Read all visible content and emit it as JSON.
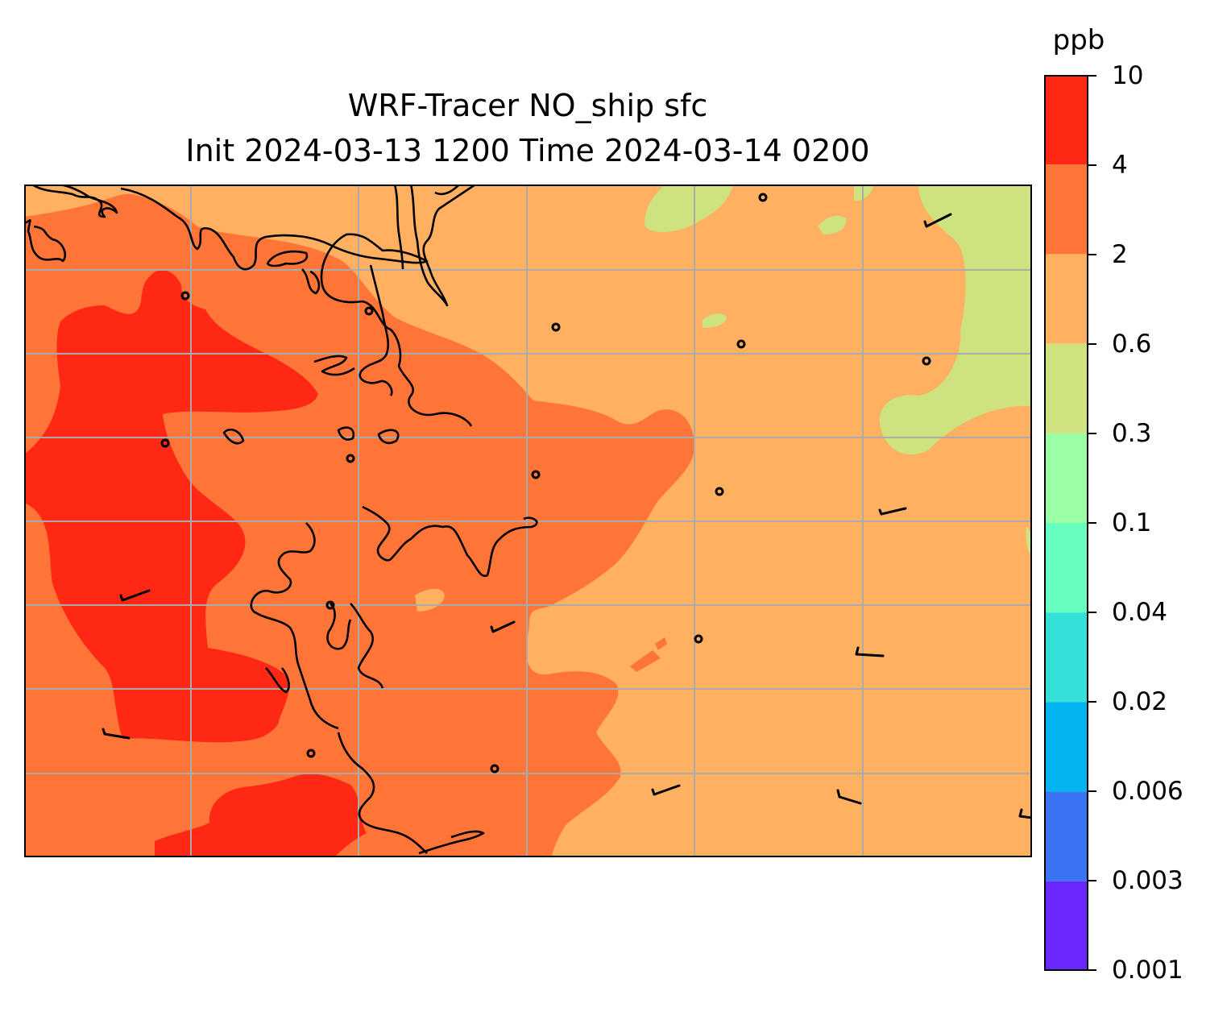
{
  "title": {
    "line1": "WRF-Tracer NO_ship sfc",
    "line2": "Init 2024-03-13 1200 Time 2024-03-14 0200"
  },
  "colorbar": {
    "unit": "ppb",
    "levels": [
      "0.001",
      "0.003",
      "0.006",
      "0.02",
      "0.04",
      "0.1",
      "0.3",
      "0.6",
      "2",
      "4",
      "10"
    ],
    "colors": [
      "#6a28ff",
      "#3a74f5",
      "#00b4ef",
      "#33e0d8",
      "#67ffc0",
      "#9bffa5",
      "#cee27f",
      "#ffb060",
      "#ff7537",
      "#ff2815"
    ]
  },
  "map": {
    "field": "NO_ship surface concentration",
    "gridlines": true,
    "coastlines": true,
    "wind_barbs": true,
    "station_markers": true
  }
}
